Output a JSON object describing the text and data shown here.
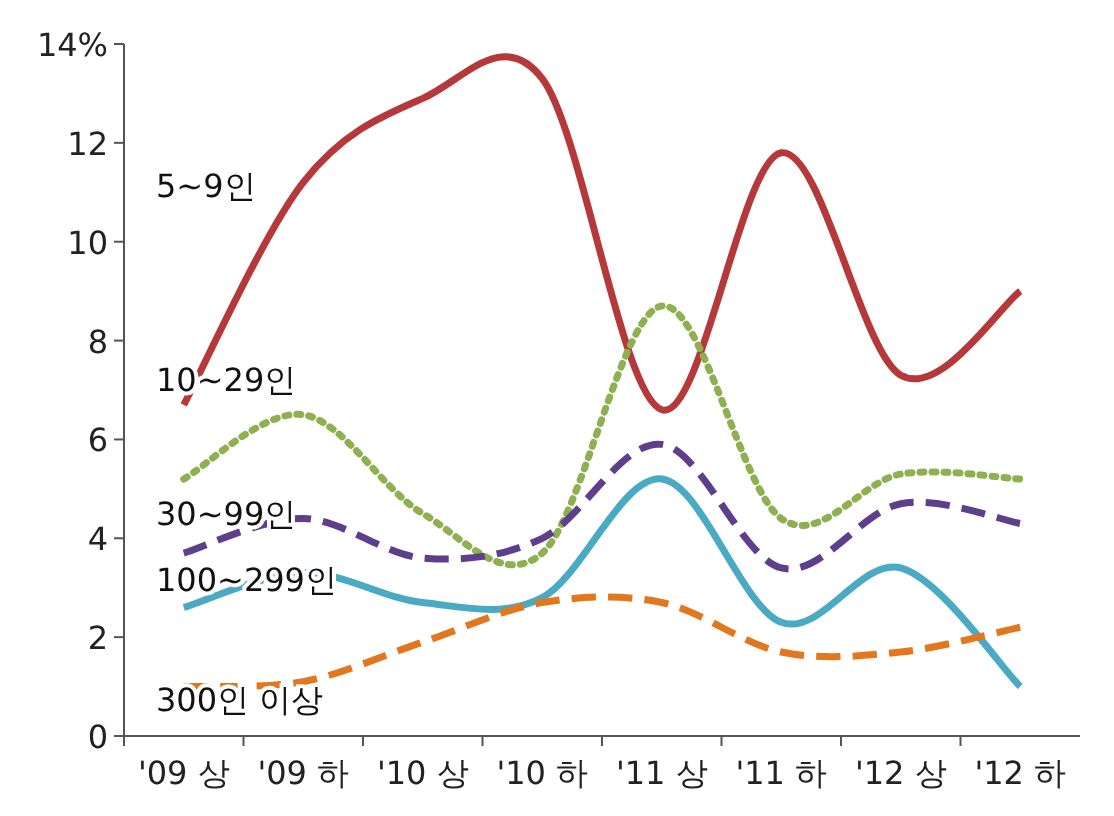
{
  "chart_data": {
    "type": "line",
    "categories": [
      "'09 상",
      "'09 하",
      "'10 상",
      "'10 하",
      "'11 상",
      "'11 하",
      "'12 상",
      "'12 하"
    ],
    "ylim": [
      0,
      14
    ],
    "yticks": [
      0,
      2,
      4,
      6,
      8,
      10,
      12,
      {
        "value": 14,
        "label": "14%"
      }
    ],
    "grid": false,
    "legend": false,
    "marker": "none",
    "series": [
      {
        "name": "5~9인",
        "color": "#b5383a",
        "line_style": "solid",
        "values": [
          6.7,
          11.2,
          12.9,
          13.3,
          6.6,
          11.8,
          7.3,
          9.0
        ]
      },
      {
        "name": "10~29인",
        "color": "#8fb050",
        "line_style": "dotted",
        "values": [
          5.2,
          6.5,
          4.5,
          3.7,
          8.7,
          4.4,
          5.3,
          5.2
        ]
      },
      {
        "name": "30~99인",
        "color": "#5e3f8c",
        "line_style": "dashed",
        "values": [
          3.7,
          4.4,
          3.6,
          4.0,
          5.9,
          3.4,
          4.7,
          4.3
        ]
      },
      {
        "name": "100~299인",
        "color": "#4aaac4",
        "line_style": "solid",
        "values": [
          2.6,
          3.3,
          2.7,
          2.8,
          5.2,
          2.3,
          3.4,
          1.0
        ]
      },
      {
        "name": "300인 이상",
        "color": "#e3771e",
        "line_style": "dashed",
        "values": [
          1.0,
          1.1,
          1.9,
          2.7,
          2.7,
          1.7,
          1.7,
          2.2
        ]
      }
    ]
  }
}
